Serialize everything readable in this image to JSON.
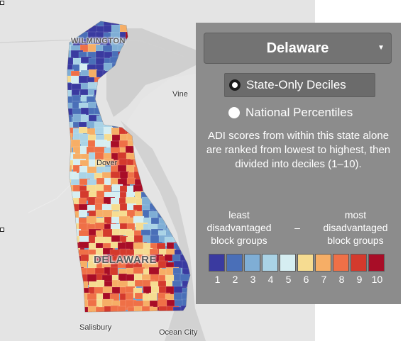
{
  "map": {
    "places": {
      "wilmington": "WILMINGTON",
      "delaware": "DELAWARE",
      "dover": "Dover",
      "vineland": "Vine",
      "salisbury": "Salisbury",
      "ocean_city": "Ocean City"
    }
  },
  "panel": {
    "state_select": {
      "value": "Delaware"
    },
    "radio_state": "State-Only Deciles",
    "radio_national": "National Percentiles",
    "selected_option": "State-Only Deciles",
    "description": "ADI scores from within this state alone are ranked from lowest to highest, then divided into deciles (1–10).",
    "legend": {
      "least": "least disadvantaged block groups",
      "dash": "–",
      "most": "most disadvantaged block groups",
      "colors": [
        "#3a3aa0",
        "#4a6fb8",
        "#7faed5",
        "#aad3e6",
        "#d6eef2",
        "#f6dc91",
        "#f6ae66",
        "#ef7047",
        "#d43a2d",
        "#a80d27"
      ],
      "deciles": [
        "1",
        "2",
        "3",
        "4",
        "5",
        "6",
        "7",
        "8",
        "9",
        "10"
      ]
    }
  }
}
